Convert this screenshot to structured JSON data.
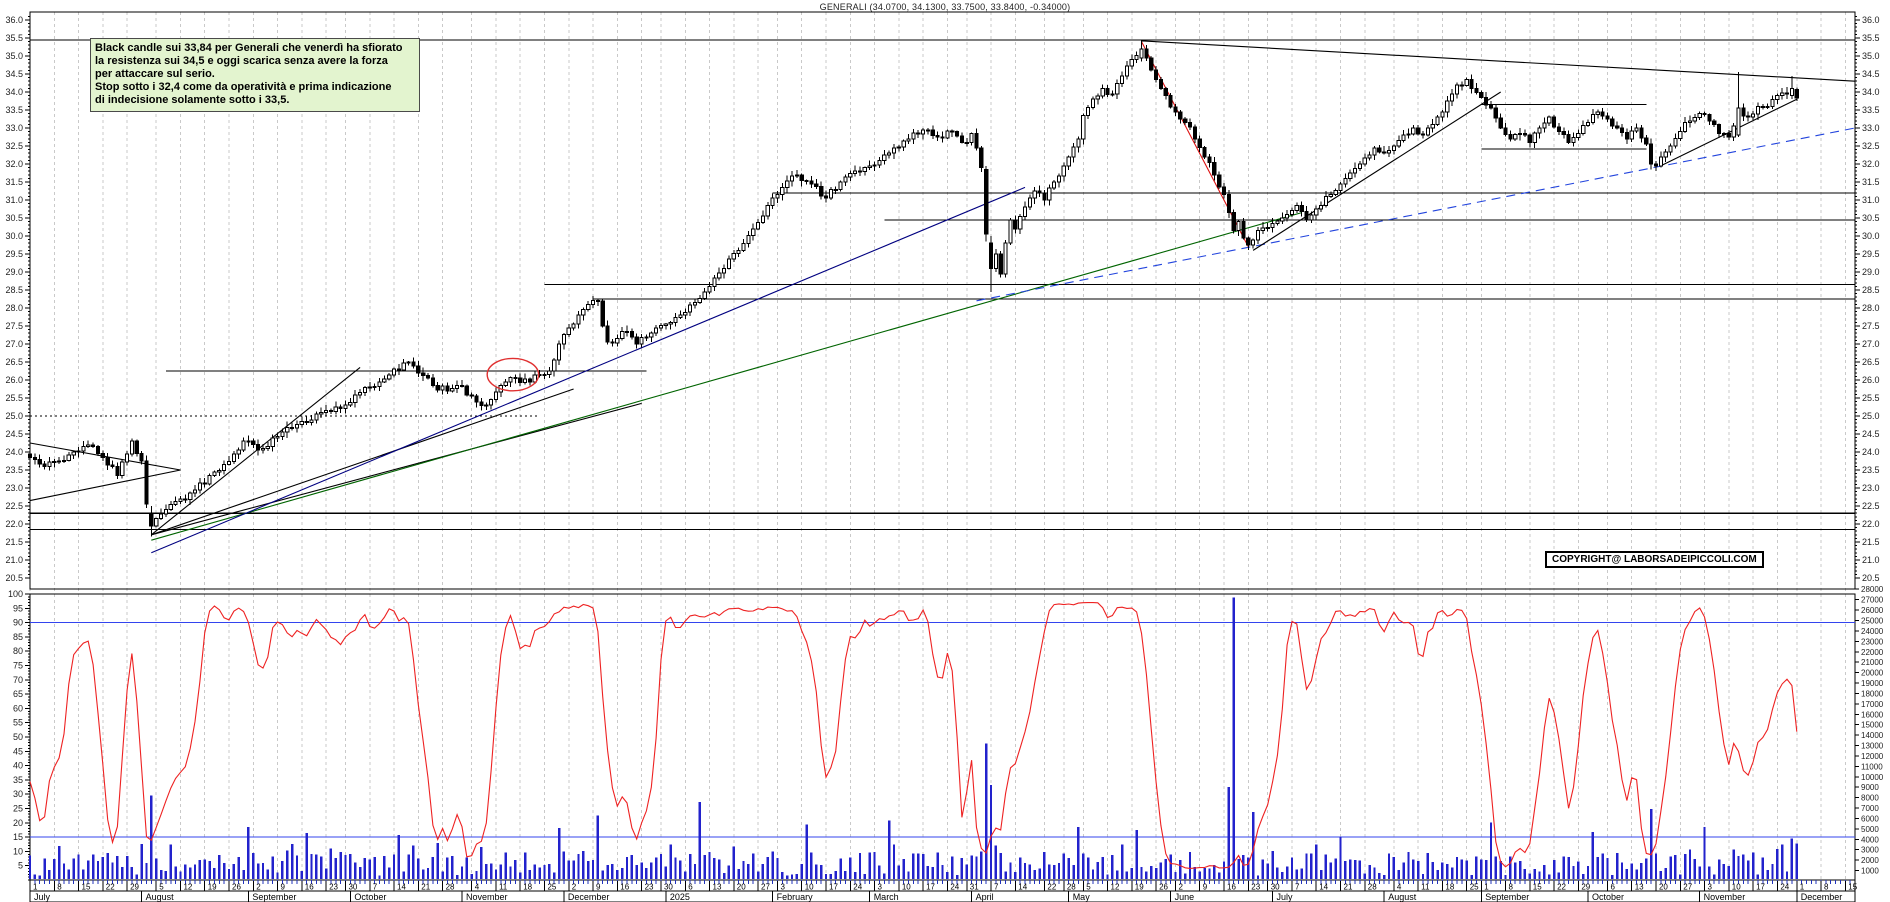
{
  "header": {
    "title": "GENERALI (34.0700, 34.1300, 33.7500, 33.8400, -0.34000)"
  },
  "annotation": {
    "bg_color": "#e3f4cf",
    "lines": [
      "Black candle sui 33,84 per Generali che venerdì ha sfiorato",
      "la resistenza sui 34,5 e oggi scarica senza avere la forza",
      "per attaccare sul serio.",
      "Stop sotto i 32,4 come da operatività e prima indicazione",
      "di indecisione solamente sotto i 33,5."
    ]
  },
  "copyright": {
    "text": "COPYRIGHT@ LABORSADEIPICCOLI.COM"
  },
  "chart_data": {
    "type": "candlestick",
    "symbol": "GENERALI",
    "last_quote": {
      "open": 34.07,
      "high": 34.13,
      "low": 33.75,
      "close": 33.84,
      "change": -0.34
    },
    "price_axis": {
      "min": 20.5,
      "max": 36.0,
      "step": 0.5,
      "minor_step": 0.1,
      "sides": "both"
    },
    "oscillator_axis": {
      "min": 5,
      "max": 100,
      "step": 5,
      "ref_lines": [
        90,
        15
      ]
    },
    "volume_axis": {
      "min": 1000,
      "max": 28000,
      "step": 1000
    },
    "months": [
      {
        "label": "July",
        "td": 23,
        "weeks": [
          1,
          8,
          15,
          22,
          29
        ]
      },
      {
        "label": "August",
        "td": 22,
        "weeks": [
          5,
          12,
          19,
          26
        ]
      },
      {
        "label": "September",
        "td": 21,
        "weeks": [
          2,
          9,
          16,
          23,
          30
        ]
      },
      {
        "label": "October",
        "td": 23,
        "weeks": [
          7,
          14,
          21,
          28
        ]
      },
      {
        "label": "November",
        "td": 21,
        "weeks": [
          4,
          11,
          18,
          25
        ]
      },
      {
        "label": "December",
        "td": 21,
        "weeks": [
          2,
          9,
          16,
          23,
          30
        ]
      },
      {
        "label": "2025",
        "td": 22,
        "weeks": [
          6,
          13,
          20,
          27
        ]
      },
      {
        "label": "February",
        "td": 20,
        "weeks": [
          3,
          10,
          17,
          24
        ]
      },
      {
        "label": "March",
        "td": 21,
        "weeks": [
          3,
          10,
          17,
          24
        ]
      },
      {
        "label": "April",
        "td": 20,
        "weeks": [
          31,
          7,
          14,
          22,
          28
        ]
      },
      {
        "label": "May",
        "td": 21,
        "weeks": [
          5,
          12,
          19,
          26
        ]
      },
      {
        "label": "June",
        "td": 21,
        "weeks": [
          2,
          9,
          16,
          23,
          30
        ]
      },
      {
        "label": "July",
        "td": 23,
        "weeks": [
          7,
          14,
          21,
          28
        ]
      },
      {
        "label": "August",
        "td": 20,
        "weeks": [
          4,
          11,
          18,
          25
        ]
      },
      {
        "label": "September",
        "td": 22,
        "weeks": [
          1,
          8,
          15,
          22,
          29
        ]
      },
      {
        "label": "October",
        "td": 23,
        "weeks": [
          6,
          13,
          20,
          27
        ]
      },
      {
        "label": "November",
        "td": 20,
        "weeks": [
          3,
          10,
          17,
          24
        ]
      },
      {
        "label": "December",
        "td": 12,
        "weeks": [
          1,
          8,
          15
        ]
      }
    ],
    "price_anchors": [
      [
        0,
        23.85
      ],
      [
        3,
        23.6
      ],
      [
        6,
        23.75
      ],
      [
        9,
        24.0
      ],
      [
        12,
        24.2
      ],
      [
        15,
        23.85
      ],
      [
        18,
        23.35
      ],
      [
        21,
        24.3
      ],
      [
        23,
        23.75
      ],
      [
        24,
        22.55
      ],
      [
        25,
        21.95
      ],
      [
        26,
        22.15
      ],
      [
        28,
        22.4
      ],
      [
        31,
        22.7
      ],
      [
        34,
        22.95
      ],
      [
        38,
        23.45
      ],
      [
        42,
        23.95
      ],
      [
        44,
        24.3
      ],
      [
        48,
        24.1
      ],
      [
        52,
        24.55
      ],
      [
        56,
        24.85
      ],
      [
        60,
        25.1
      ],
      [
        65,
        25.3
      ],
      [
        68,
        25.65
      ],
      [
        72,
        25.95
      ],
      [
        75,
        26.3
      ],
      [
        78,
        26.5
      ],
      [
        80,
        26.2
      ],
      [
        83,
        25.85
      ],
      [
        86,
        25.7
      ],
      [
        88,
        25.85
      ],
      [
        91,
        25.55
      ],
      [
        94,
        25.3
      ],
      [
        97,
        25.85
      ],
      [
        100,
        26.05
      ],
      [
        103,
        25.95
      ],
      [
        105,
        26.15
      ],
      [
        107,
        26.25
      ],
      [
        108,
        26.55
      ],
      [
        109,
        27.0
      ],
      [
        111,
        27.45
      ],
      [
        113,
        27.8
      ],
      [
        115,
        28.1
      ],
      [
        117,
        28.2
      ],
      [
        118,
        27.5
      ],
      [
        119,
        27.05
      ],
      [
        121,
        27.15
      ],
      [
        123,
        27.35
      ],
      [
        125,
        27.0
      ],
      [
        127,
        27.2
      ],
      [
        129,
        27.45
      ],
      [
        131,
        27.55
      ],
      [
        134,
        27.8
      ],
      [
        137,
        28.15
      ],
      [
        140,
        28.6
      ],
      [
        143,
        29.1
      ],
      [
        146,
        29.6
      ],
      [
        149,
        30.2
      ],
      [
        152,
        30.85
      ],
      [
        155,
        31.35
      ],
      [
        158,
        31.7
      ],
      [
        161,
        31.45
      ],
      [
        164,
        31.05
      ],
      [
        167,
        31.5
      ],
      [
        170,
        31.8
      ],
      [
        172,
        31.9
      ],
      [
        175,
        32.1
      ],
      [
        178,
        32.45
      ],
      [
        181,
        32.7
      ],
      [
        184,
        32.95
      ],
      [
        187,
        32.75
      ],
      [
        190,
        32.9
      ],
      [
        193,
        32.6
      ],
      [
        194,
        32.85
      ],
      [
        195,
        32.45
      ],
      [
        196,
        31.9
      ],
      [
        197,
        30.05
      ],
      [
        198,
        29.1
      ],
      [
        199,
        29.5
      ],
      [
        200,
        28.95
      ],
      [
        201,
        29.8
      ],
      [
        202,
        30.45
      ],
      [
        203,
        30.2
      ],
      [
        205,
        30.8
      ],
      [
        207,
        31.25
      ],
      [
        209,
        31.0
      ],
      [
        211,
        31.5
      ],
      [
        213,
        31.95
      ],
      [
        214,
        32.2
      ],
      [
        216,
        32.7
      ],
      [
        217,
        33.35
      ],
      [
        219,
        33.8
      ],
      [
        221,
        34.1
      ],
      [
        223,
        33.95
      ],
      [
        225,
        34.45
      ],
      [
        227,
        34.9
      ],
      [
        229,
        35.2
      ],
      [
        230,
        34.95
      ],
      [
        232,
        34.35
      ],
      [
        234,
        33.9
      ],
      [
        236,
        33.45
      ],
      [
        238,
        33.15
      ],
      [
        240,
        32.7
      ],
      [
        242,
        32.2
      ],
      [
        244,
        31.7
      ],
      [
        246,
        31.15
      ],
      [
        247,
        30.65
      ],
      [
        248,
        30.15
      ],
      [
        249,
        30.4
      ],
      [
        250,
        29.95
      ],
      [
        251,
        29.75
      ],
      [
        253,
        30.15
      ],
      [
        256,
        30.35
      ],
      [
        259,
        30.6
      ],
      [
        261,
        30.85
      ],
      [
        263,
        30.45
      ],
      [
        265,
        30.75
      ],
      [
        268,
        31.15
      ],
      [
        271,
        31.6
      ],
      [
        274,
        32.0
      ],
      [
        277,
        32.45
      ],
      [
        279,
        32.3
      ],
      [
        282,
        32.65
      ],
      [
        285,
        33.0
      ],
      [
        287,
        32.8
      ],
      [
        290,
        33.3
      ],
      [
        292,
        33.75
      ],
      [
        294,
        34.2
      ],
      [
        296,
        34.35
      ],
      [
        297,
        34.1
      ],
      [
        299,
        33.85
      ],
      [
        301,
        33.55
      ],
      [
        303,
        33.0
      ],
      [
        305,
        32.7
      ],
      [
        307,
        32.85
      ],
      [
        309,
        32.6
      ],
      [
        311,
        33.0
      ],
      [
        313,
        33.3
      ],
      [
        315,
        32.9
      ],
      [
        317,
        32.6
      ],
      [
        319,
        32.85
      ],
      [
        321,
        33.15
      ],
      [
        323,
        33.45
      ],
      [
        325,
        33.25
      ],
      [
        327,
        33.0
      ],
      [
        329,
        32.7
      ],
      [
        331,
        33.0
      ],
      [
        333,
        32.55
      ],
      [
        334,
        32.0
      ],
      [
        335,
        31.95
      ],
      [
        336,
        32.2
      ],
      [
        338,
        32.5
      ],
      [
        340,
        32.9
      ],
      [
        342,
        33.2
      ],
      [
        344,
        33.4
      ],
      [
        346,
        33.2
      ],
      [
        348,
        32.85
      ],
      [
        350,
        32.75
      ],
      [
        352,
        33.55
      ],
      [
        354,
        33.3
      ],
      [
        356,
        33.6
      ],
      [
        358,
        33.6
      ],
      [
        360,
        33.9
      ],
      [
        362,
        33.95
      ],
      [
        363,
        34.1
      ],
      [
        364,
        33.84
      ]
    ],
    "special_candles": {
      "24": [
        23.75,
        23.9,
        22.45,
        22.55
      ],
      "25": [
        22.3,
        22.5,
        21.65,
        21.95
      ],
      "197": [
        31.85,
        31.95,
        29.85,
        30.05
      ],
      "198": [
        29.8,
        30.0,
        28.45,
        29.1
      ],
      "229": [
        34.95,
        35.45,
        34.85,
        35.2
      ],
      "352": [
        32.8,
        34.55,
        32.75,
        33.55
      ],
      "363": [
        33.9,
        34.45,
        33.8,
        34.1
      ],
      "364": [
        34.07,
        34.13,
        33.75,
        33.84
      ]
    },
    "volume_spikes": {
      "25": 8200,
      "45": 5200,
      "57": 4600,
      "76": 4400,
      "109": 5100,
      "117": 6300,
      "138": 7600,
      "160": 5400,
      "177": 5800,
      "197": 13200,
      "198": 9200,
      "216": 5200,
      "228": 4900,
      "247": 9000,
      "248": 27200,
      "252": 6600,
      "270": 4200,
      "301": 5600,
      "322": 4700,
      "334": 6900,
      "345": 5200,
      "363": 4100,
      "364": 3600
    },
    "trend_lines": [
      {
        "d1": 0,
        "p1": 35.45,
        "d2": 376,
        "p2": 35.45,
        "c": "#000000"
      },
      {
        "d1": 0,
        "p1": 22.3,
        "d2": 376,
        "p2": 22.3,
        "c": "#000000"
      },
      {
        "d1": 0,
        "p1": 21.85,
        "d2": 376,
        "p2": 21.85,
        "c": "#000000"
      },
      {
        "d1": 0,
        "p1": 25.0,
        "d2": 105,
        "p2": 25.0,
        "c": "#000000",
        "dash": "2,3"
      },
      {
        "d1": 28,
        "p1": 26.25,
        "d2": 127,
        "p2": 26.25,
        "c": "#000000"
      },
      {
        "d1": 106,
        "p1": 28.65,
        "d2": 376,
        "p2": 28.65,
        "c": "#000000"
      },
      {
        "d1": 116,
        "p1": 28.25,
        "d2": 376,
        "p2": 28.25,
        "c": "#000000"
      },
      {
        "d1": 153,
        "p1": 31.2,
        "d2": 376,
        "p2": 31.2,
        "c": "#000000"
      },
      {
        "d1": 176,
        "p1": 30.45,
        "d2": 376,
        "p2": 30.45,
        "c": "#000000"
      },
      {
        "d1": 299,
        "p1": 33.65,
        "d2": 333,
        "p2": 33.65,
        "c": "#000000"
      },
      {
        "d1": 299,
        "p1": 32.42,
        "d2": 333,
        "p2": 32.42,
        "c": "#000000"
      },
      {
        "d1": 0,
        "p1": 24.25,
        "d2": 31,
        "p2": 23.5,
        "c": "#000000"
      },
      {
        "d1": 0,
        "p1": 22.65,
        "d2": 31,
        "p2": 23.5,
        "c": "#000000"
      },
      {
        "d1": 25,
        "p1": 21.7,
        "d2": 68,
        "p2": 26.35,
        "c": "#000000"
      },
      {
        "d1": 25,
        "p1": 21.7,
        "d2": 112,
        "p2": 25.75,
        "c": "#000000"
      },
      {
        "d1": 25,
        "p1": 21.7,
        "d2": 126,
        "p2": 25.35,
        "c": "#000000"
      },
      {
        "d1": 25,
        "p1": 21.55,
        "d2": 262,
        "p2": 30.65,
        "c": "#006400"
      },
      {
        "d1": 25,
        "p1": 21.2,
        "d2": 205,
        "p2": 31.35,
        "c": "#000080"
      },
      {
        "d1": 195,
        "p1": 28.2,
        "d2": 376,
        "p2": 33.0,
        "c": "#2244dd",
        "dash": "9,6"
      },
      {
        "d1": 229,
        "p1": 35.4,
        "d2": 251,
        "p2": 29.7,
        "c": "#dd1111"
      },
      {
        "d1": 229,
        "p1": 35.42,
        "d2": 376,
        "p2": 34.3,
        "c": "#000000"
      },
      {
        "d1": 252,
        "p1": 29.6,
        "d2": 303,
        "p2": 34.0,
        "c": "#000000"
      },
      {
        "d1": 336,
        "p1": 31.95,
        "d2": 364,
        "p2": 33.8,
        "c": "#000000"
      }
    ],
    "ellipse_marker": {
      "d": 99.5,
      "price": 26.15,
      "rx_days": 5.3,
      "ry_price": 0.45,
      "color": "#e03030"
    },
    "colors": {
      "up_body": "#ffffff",
      "down_body": "#000000",
      "wick": "#000000",
      "grid": "#c9c9c9",
      "oscillator": "#ee2222",
      "volume": "#2222cc",
      "ref_line": "#3344ee",
      "border": "#000000"
    }
  }
}
